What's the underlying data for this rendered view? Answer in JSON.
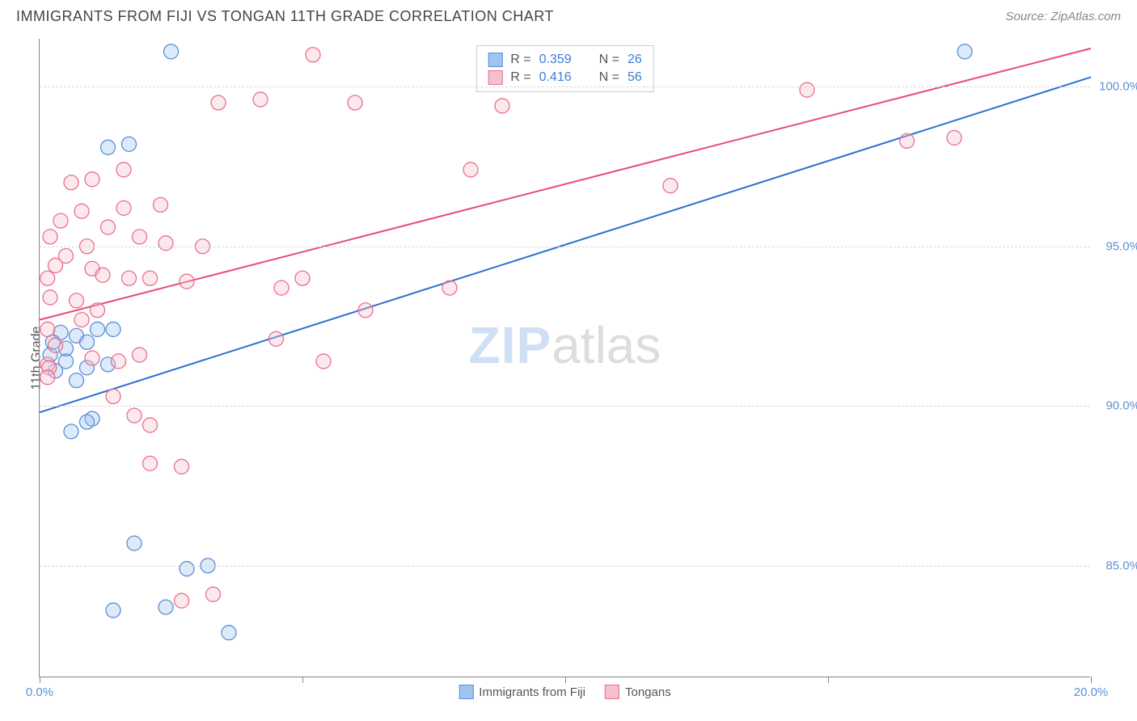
{
  "header": {
    "title": "IMMIGRANTS FROM FIJI VS TONGAN 11TH GRADE CORRELATION CHART",
    "source": "Source: ZipAtlas.com"
  },
  "watermark": {
    "part1": "ZIP",
    "part2": "atlas"
  },
  "chart": {
    "type": "scatter",
    "y_axis_label": "11th Grade",
    "background_color": "#ffffff",
    "grid_color": "#d8d8d8",
    "axis_color": "#888888",
    "xlim": [
      0,
      20
    ],
    "ylim": [
      81.5,
      101.5
    ],
    "x_ticks": [
      0,
      5,
      10,
      15,
      20
    ],
    "x_tick_labels": [
      "0.0%",
      "",
      "",
      "",
      "20.0%"
    ],
    "y_ticks": [
      85,
      90,
      95,
      100
    ],
    "y_tick_labels": [
      "85.0%",
      "90.0%",
      "95.0%",
      "100.0%"
    ],
    "tick_label_color": "#5b8fd6",
    "tick_label_fontsize": 15,
    "marker_radius": 9,
    "marker_fill_opacity": 0.35,
    "marker_stroke_width": 1.3,
    "line_width": 2,
    "series": [
      {
        "name": "Immigrants from Fiji",
        "color_fill": "#9ec4ef",
        "color_stroke": "#5b8fd6",
        "line_color": "#2e6fd1",
        "r_value": "0.359",
        "n_value": "26",
        "trend_line": {
          "x1": 0,
          "y1": 89.8,
          "x2": 20,
          "y2": 100.3
        },
        "points": [
          {
            "x": 2.5,
            "y": 101.1
          },
          {
            "x": 1.7,
            "y": 98.2
          },
          {
            "x": 1.3,
            "y": 98.1
          },
          {
            "x": 17.6,
            "y": 101.1
          },
          {
            "x": 0.4,
            "y": 92.3
          },
          {
            "x": 0.7,
            "y": 92.2
          },
          {
            "x": 1.1,
            "y": 92.4
          },
          {
            "x": 0.9,
            "y": 92.0
          },
          {
            "x": 1.4,
            "y": 92.4
          },
          {
            "x": 0.2,
            "y": 91.6
          },
          {
            "x": 0.5,
            "y": 91.4
          },
          {
            "x": 0.9,
            "y": 91.2
          },
          {
            "x": 0.3,
            "y": 91.1
          },
          {
            "x": 0.7,
            "y": 90.8
          },
          {
            "x": 1.3,
            "y": 91.3
          },
          {
            "x": 0.6,
            "y": 89.2
          },
          {
            "x": 1.0,
            "y": 89.6
          },
          {
            "x": 0.9,
            "y": 89.5
          },
          {
            "x": 1.8,
            "y": 85.7
          },
          {
            "x": 2.8,
            "y": 84.9
          },
          {
            "x": 3.2,
            "y": 85.0
          },
          {
            "x": 1.4,
            "y": 83.6
          },
          {
            "x": 2.4,
            "y": 83.7
          },
          {
            "x": 3.6,
            "y": 82.9
          },
          {
            "x": 0.25,
            "y": 92.0
          },
          {
            "x": 0.5,
            "y": 91.8
          }
        ]
      },
      {
        "name": "Tongans",
        "color_fill": "#f6bfce",
        "color_stroke": "#e96f8e",
        "line_color": "#e54d77",
        "r_value": "0.416",
        "n_value": "56",
        "trend_line": {
          "x1": 0,
          "y1": 92.7,
          "x2": 20,
          "y2": 101.2
        },
        "points": [
          {
            "x": 5.2,
            "y": 101.0
          },
          {
            "x": 3.4,
            "y": 99.5
          },
          {
            "x": 4.2,
            "y": 99.6
          },
          {
            "x": 6.0,
            "y": 99.5
          },
          {
            "x": 8.8,
            "y": 99.4
          },
          {
            "x": 14.6,
            "y": 99.9
          },
          {
            "x": 1.0,
            "y": 97.1
          },
          {
            "x": 1.6,
            "y": 97.4
          },
          {
            "x": 8.2,
            "y": 97.4
          },
          {
            "x": 12.0,
            "y": 96.9
          },
          {
            "x": 0.4,
            "y": 95.8
          },
          {
            "x": 0.8,
            "y": 96.1
          },
          {
            "x": 0.2,
            "y": 95.3
          },
          {
            "x": 1.3,
            "y": 95.6
          },
          {
            "x": 1.9,
            "y": 95.3
          },
          {
            "x": 2.4,
            "y": 95.1
          },
          {
            "x": 1.0,
            "y": 94.3
          },
          {
            "x": 0.3,
            "y": 94.4
          },
          {
            "x": 0.15,
            "y": 94.0
          },
          {
            "x": 1.2,
            "y": 94.1
          },
          {
            "x": 1.7,
            "y": 94.0
          },
          {
            "x": 2.1,
            "y": 94.0
          },
          {
            "x": 2.8,
            "y": 93.9
          },
          {
            "x": 4.6,
            "y": 93.7
          },
          {
            "x": 5.0,
            "y": 94.0
          },
          {
            "x": 7.8,
            "y": 93.7
          },
          {
            "x": 6.2,
            "y": 93.0
          },
          {
            "x": 4.5,
            "y": 92.1
          },
          {
            "x": 0.3,
            "y": 91.9
          },
          {
            "x": 5.4,
            "y": 91.4
          },
          {
            "x": 0.15,
            "y": 91.3
          },
          {
            "x": 0.18,
            "y": 91.2
          },
          {
            "x": 0.15,
            "y": 90.9
          },
          {
            "x": 1.4,
            "y": 90.3
          },
          {
            "x": 1.8,
            "y": 89.7
          },
          {
            "x": 2.1,
            "y": 89.4
          },
          {
            "x": 2.1,
            "y": 88.2
          },
          {
            "x": 2.7,
            "y": 88.1
          },
          {
            "x": 2.7,
            "y": 83.9
          },
          {
            "x": 3.3,
            "y": 84.1
          },
          {
            "x": 16.5,
            "y": 98.3
          },
          {
            "x": 17.4,
            "y": 98.4
          },
          {
            "x": 0.6,
            "y": 97.0
          },
          {
            "x": 0.5,
            "y": 94.7
          },
          {
            "x": 1.6,
            "y": 96.2
          },
          {
            "x": 0.9,
            "y": 95.0
          },
          {
            "x": 2.3,
            "y": 96.3
          },
          {
            "x": 3.1,
            "y": 95.0
          },
          {
            "x": 0.7,
            "y": 93.3
          },
          {
            "x": 0.2,
            "y": 93.4
          },
          {
            "x": 0.15,
            "y": 92.4
          },
          {
            "x": 1.0,
            "y": 91.5
          },
          {
            "x": 1.5,
            "y": 91.4
          },
          {
            "x": 0.8,
            "y": 92.7
          },
          {
            "x": 1.1,
            "y": 93.0
          },
          {
            "x": 1.9,
            "y": 91.6
          }
        ]
      }
    ],
    "bottom_legend": [
      {
        "label": "Immigrants from Fiji",
        "fill": "#9ec4ef",
        "stroke": "#5b8fd6"
      },
      {
        "label": "Tongans",
        "fill": "#f6bfce",
        "stroke": "#e96f8e"
      }
    ]
  }
}
